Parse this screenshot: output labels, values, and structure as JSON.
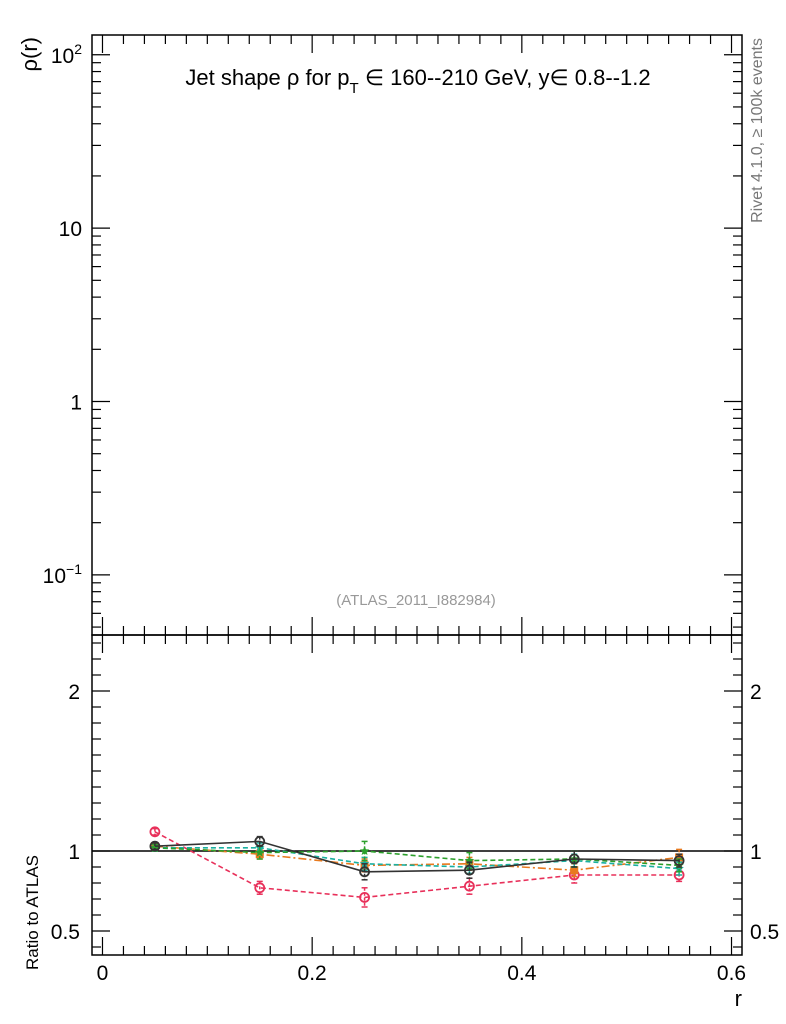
{
  "chart_data": [
    {
      "type": "line",
      "panel": "main",
      "title": "Jet shape ρ for p_T ∈ 160--210 GeV, y∈ 0.8--1.2",
      "title_parts": {
        "prefix": "Jet shape ρ for p",
        "sub": "T",
        "suffix": " ∈ 160--210 GeV, y∈ 0.8--1.2"
      },
      "ylabel": "ρ(r)",
      "yscale": "log",
      "ylim": [
        0.045,
        130
      ],
      "xlim": [
        -0.01,
        0.61
      ],
      "y_ticks": [
        {
          "value": 0.1,
          "label": "10",
          "sup": "−1"
        },
        {
          "value": 1,
          "label": "1",
          "sup": ""
        },
        {
          "value": 10,
          "label": "10",
          "sup": ""
        },
        {
          "value": 100,
          "label": "10",
          "sup": "2"
        }
      ],
      "annotation": "(ATLAS_2011_I882984)",
      "side_label": "Rivet 4.1.0, ≥ 100k events"
    },
    {
      "type": "line",
      "panel": "ratio",
      "ylabel": "Ratio to ATLAS",
      "xlabel": "r",
      "ylim": [
        0.35,
        2.35
      ],
      "xlim": [
        -0.01,
        0.61
      ],
      "y_ticks": [
        0.5,
        1,
        2
      ],
      "x_ticks": [
        0,
        0.2,
        0.4,
        0.6
      ],
      "x_tick_labels": [
        "0",
        "0.2",
        "0.4",
        "0.6"
      ],
      "y_tick_labels": [
        "0.5",
        "1",
        "2"
      ],
      "reference": 1.0,
      "x": [
        0.05,
        0.15,
        0.25,
        0.35,
        0.45,
        0.55
      ],
      "series": [
        {
          "color": "#e8305a",
          "style": "dashed",
          "marker": "circle-open",
          "values": [
            1.12,
            0.77,
            0.71,
            0.78,
            0.85,
            0.85
          ],
          "errors": [
            0.02,
            0.04,
            0.06,
            0.05,
            0.05,
            0.04
          ]
        },
        {
          "color": "#e87a1e",
          "style": "dashdot",
          "marker": "square",
          "values": [
            1.03,
            0.98,
            0.91,
            0.92,
            0.88,
            0.96
          ],
          "errors": [
            0.02,
            0.03,
            0.04,
            0.04,
            0.04,
            0.05
          ]
        },
        {
          "color": "#1ab0a0",
          "style": "dashed",
          "marker": "star",
          "values": [
            1.02,
            1.02,
            0.92,
            0.9,
            0.94,
            0.89
          ],
          "errors": [
            0.02,
            0.03,
            0.04,
            0.04,
            0.04,
            0.04
          ]
        },
        {
          "color": "#2ca02c",
          "style": "dashed",
          "marker": "star",
          "values": [
            1.02,
            0.99,
            1.0,
            0.94,
            0.95,
            0.91
          ],
          "errors": [
            0.02,
            0.04,
            0.06,
            0.05,
            0.05,
            0.04
          ]
        },
        {
          "color": "#333333",
          "style": "solid",
          "marker": "circle-open",
          "values": [
            1.03,
            1.06,
            0.87,
            0.88,
            0.95,
            0.94
          ],
          "errors": [
            0.02,
            0.03,
            0.05,
            0.05,
            0.05,
            0.04
          ]
        }
      ]
    }
  ]
}
